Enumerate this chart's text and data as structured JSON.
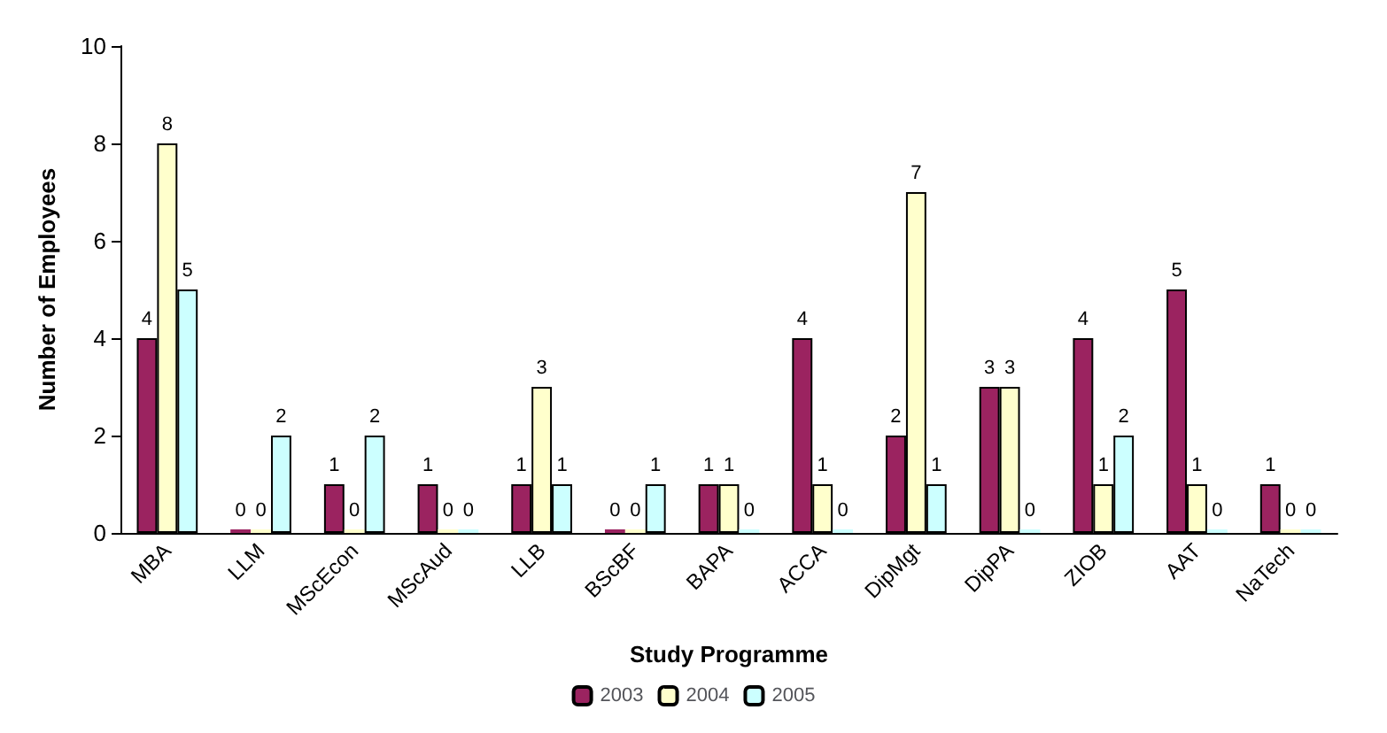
{
  "chart_data": {
    "type": "bar",
    "xlabel": "Study Programme",
    "ylabel": "Number of Employees",
    "categories": [
      "MBA",
      "LLM",
      "MScEcon",
      "MScAud",
      "LLB",
      "BScBF",
      "BAPA",
      "ACCA",
      "DipMgt",
      "DipPA",
      "ZIOB",
      "AAT",
      "NaTech"
    ],
    "series": [
      {
        "name": "2003",
        "color": "#9b2360",
        "values": [
          4,
          0,
          1,
          1,
          1,
          0,
          1,
          4,
          2,
          3,
          4,
          5,
          1
        ]
      },
      {
        "name": "2004",
        "color": "#ffffcc",
        "values": [
          8,
          0,
          0,
          0,
          3,
          0,
          1,
          1,
          7,
          3,
          1,
          1,
          0
        ]
      },
      {
        "name": "2005",
        "color": "#ccffff",
        "values": [
          5,
          2,
          2,
          0,
          1,
          1,
          0,
          0,
          1,
          0,
          2,
          0,
          0
        ]
      }
    ],
    "ylim": [
      0,
      10
    ],
    "yticks": [
      0,
      2,
      4,
      6,
      8,
      10
    ],
    "grid": false,
    "legend": "bottom",
    "data_labels": true
  }
}
